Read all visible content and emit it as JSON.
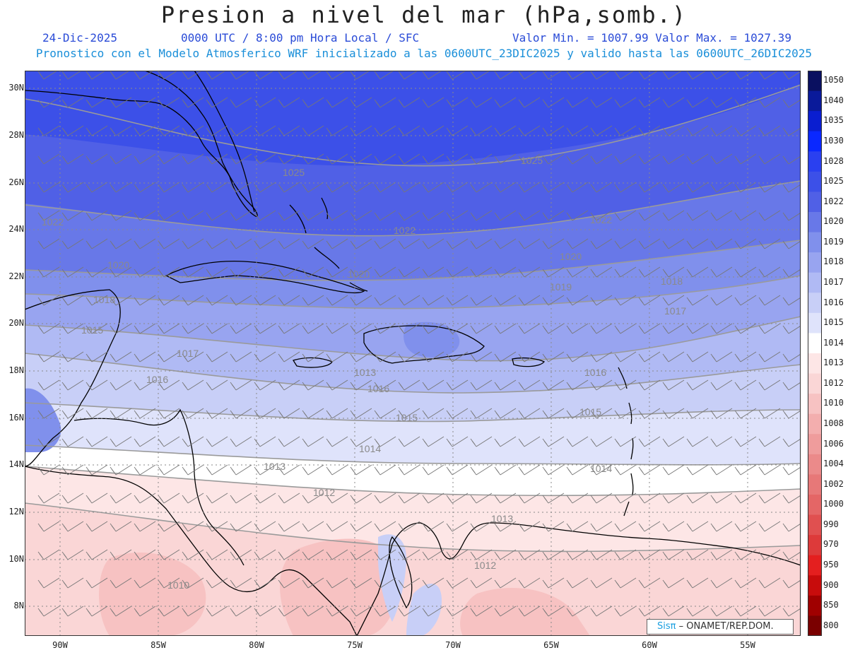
{
  "header": {
    "title": "Presion a nivel del mar (hPa,somb.)",
    "date": "24-Dic-2025",
    "time": "0000 UTC / 8:00 pm Hora Local / SFC",
    "stats": "Valor Min. = 1007.99  Valor Max. = 1027.39",
    "forecast_note": "Pronostico con el Modelo Atmosferico WRF inicializado a las 0600UTC_23DIC2025 y valido hasta las  0600UTC_26DIC2025"
  },
  "axes": {
    "lat_labels": [
      "30N",
      "28N",
      "26N",
      "24N",
      "22N",
      "20N",
      "18N",
      "16N",
      "14N",
      "12N",
      "10N",
      "8N"
    ],
    "lat_values": [
      30,
      28,
      26,
      24,
      22,
      20,
      18,
      16,
      14,
      12,
      10,
      8
    ],
    "lon_labels": [
      "90W",
      "85W",
      "80W",
      "75W",
      "70W",
      "65W",
      "60W",
      "55W"
    ],
    "lon_values": [
      -90,
      -85,
      -80,
      -75,
      -70,
      -65,
      -60,
      -55
    ],
    "lat_range": [
      6.8,
      30.5
    ],
    "lon_range": [
      -91.8,
      -51.4
    ],
    "grid": "dotted"
  },
  "colorbar": {
    "labels": [
      "1050",
      "1040",
      "1035",
      "1030",
      "1028",
      "1025",
      "1022",
      "1020",
      "1019",
      "1018",
      "1017",
      "1016",
      "1015",
      "1014",
      "1013",
      "1012",
      "1010",
      "1008",
      "1006",
      "1004",
      "1002",
      "1000",
      "990",
      "970",
      "950",
      "900",
      "850",
      "800"
    ],
    "colors": [
      "#0a1060",
      "#0a1a9a",
      "#0a1ed0",
      "#0a28ff",
      "#2a40f0",
      "#3c50e8",
      "#5060e6",
      "#6878e8",
      "#8090ec",
      "#98a4f0",
      "#b0baf4",
      "#c8cff7",
      "#dfe3fb",
      "#ffffff",
      "#fde6e6",
      "#fad6d6",
      "#f7c2c2",
      "#f3aeae",
      "#ef9c9c",
      "#eb8a8a",
      "#e77878",
      "#e46666",
      "#e05050",
      "#dd3a3a",
      "#e41f1f",
      "#c80c0c",
      "#a00000",
      "#7a0000"
    ]
  },
  "isobars": {
    "labels": [
      "1025",
      "1025",
      "1022",
      "1022",
      "1022",
      "1020",
      "1020",
      "1020",
      "1019",
      "1018",
      "1018",
      "1017",
      "1017",
      "1016",
      "1016",
      "1016",
      "1015",
      "1015",
      "1015",
      "1014",
      "1014",
      "1013",
      "1013",
      "1013",
      "1012",
      "1012",
      "1010"
    ],
    "colors": {
      "line": "#9a9a9a",
      "label": "#8a8a8a"
    }
  },
  "credit": {
    "brand": "Sisπ",
    "text": "– ONAMET/REP.DOM."
  },
  "colors": {
    "title": "#222222",
    "date_line": "#2a4bd7",
    "note_line": "#1a8fd9",
    "coast": "#000000",
    "wind_barb": "#777777"
  }
}
